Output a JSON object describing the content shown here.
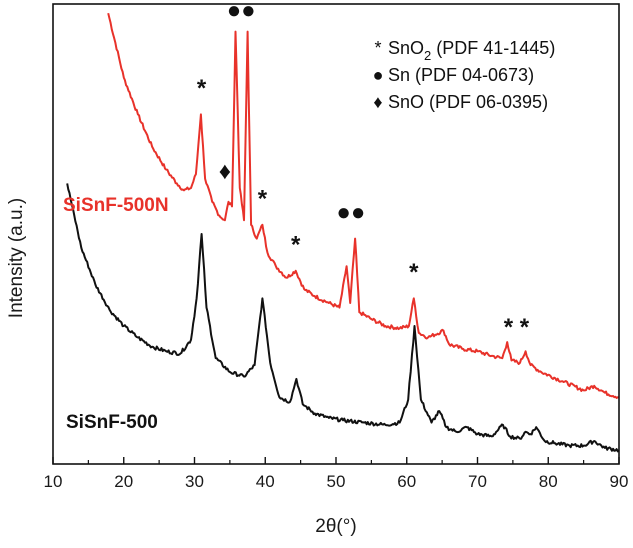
{
  "chart_data": {
    "type": "line",
    "xlabel": "2θ(°)",
    "ylabel": "Intensity (a.u.)",
    "xlim": [
      10,
      90
    ],
    "ylim": [
      0,
      100
    ],
    "x_ticks": [
      "10",
      "20",
      "30",
      "40",
      "50",
      "60",
      "70",
      "80",
      "90"
    ],
    "y_tick_labels_shown": false,
    "grid": false,
    "series": [
      {
        "name": "SiSnF-500N",
        "color": "#e8322a",
        "label_position": "left",
        "x": [
          17.8,
          20,
          22,
          24,
          26,
          27.5,
          28.5,
          29.5,
          30.2,
          30.9,
          31.5,
          32.5,
          33.5,
          34.3,
          34.8,
          35.3,
          35.8,
          36.4,
          37.0,
          37.5,
          38.0,
          38.8,
          39.6,
          40.3,
          41.5,
          43,
          44.3,
          45.5,
          47,
          49,
          50.5,
          51.5,
          52.0,
          52.7,
          53.3,
          55,
          57,
          59,
          60.3,
          61.0,
          61.7,
          63,
          65.2,
          66,
          68,
          70,
          72,
          73.5,
          74.2,
          74.8,
          76,
          76.8,
          77.5,
          79,
          82,
          85,
          86.5,
          88,
          90
        ],
        "values": [
          98,
          84,
          76,
          69,
          64,
          61,
          59.5,
          60,
          63,
          76,
          62,
          57,
          54,
          53,
          57,
          56,
          94,
          60,
          53,
          94,
          52,
          49,
          52,
          46,
          43,
          40.5,
          42,
          38,
          36.5,
          35,
          34,
          43,
          35,
          49,
          33,
          31.5,
          30,
          29.5,
          30,
          36,
          28.5,
          27.5,
          29,
          26,
          25,
          24.5,
          23.5,
          23,
          26.5,
          22.5,
          22,
          24.5,
          21.5,
          20,
          18,
          16,
          17,
          15.5,
          14.5
        ]
      },
      {
        "name": "SiSnF-500",
        "color": "#111111",
        "label_position": "left",
        "x": [
          12,
          14,
          16,
          18,
          20,
          22,
          24,
          26,
          28,
          29.5,
          30.3,
          31.0,
          31.7,
          33,
          35,
          37,
          38.5,
          39.6,
          40.7,
          42,
          43.5,
          44.4,
          45.3,
          47,
          49,
          51,
          54,
          57,
          59,
          60.2,
          61.1,
          62.0,
          63.5,
          64.6,
          65.6,
          67,
          68.5,
          70,
          72,
          73.6,
          74.6,
          76,
          76.8,
          77.5,
          78.3,
          79.5,
          81,
          83,
          85,
          86.5,
          88,
          90
        ],
        "values": [
          61,
          47,
          39,
          33.5,
          30,
          27.5,
          25.5,
          24.5,
          24,
          27,
          36,
          50,
          34,
          23,
          20,
          19,
          21.5,
          36,
          22,
          14.5,
          13.5,
          18.5,
          13,
          11,
          10,
          9.5,
          9,
          8.5,
          9,
          14,
          30,
          14,
          9,
          11.5,
          8,
          7,
          8,
          6.5,
          6,
          8.5,
          6,
          5.5,
          7,
          6.5,
          8,
          5,
          4.5,
          4,
          4,
          5,
          3.5,
          3
        ]
      }
    ],
    "annotations": [
      {
        "symbol": "*",
        "x": 31.0,
        "y": 80
      },
      {
        "symbol": "♦",
        "x": 34.3,
        "y": 62
      },
      {
        "symbol": "●●",
        "x": 36.6,
        "y": 97
      },
      {
        "symbol": "*",
        "x": 39.6,
        "y": 56
      },
      {
        "symbol": "*",
        "x": 44.3,
        "y": 46
      },
      {
        "symbol": "●●",
        "x": 52.1,
        "y": 53
      },
      {
        "symbol": "*",
        "x": 61.0,
        "y": 40
      },
      {
        "symbol": "*  *",
        "x": 75.5,
        "y": 28
      }
    ],
    "legend": {
      "placement": "top-right",
      "entries": [
        {
          "symbol": "*",
          "label": "SnO",
          "subscript": "2",
          "suffix": " (PDF 41-1445)"
        },
        {
          "symbol": "●",
          "label": "Sn (PDF 04-0673)",
          "subscript": "",
          "suffix": ""
        },
        {
          "symbol": "♦",
          "label": "SnO (PDF 06-0395)",
          "subscript": "",
          "suffix": ""
        }
      ]
    }
  }
}
